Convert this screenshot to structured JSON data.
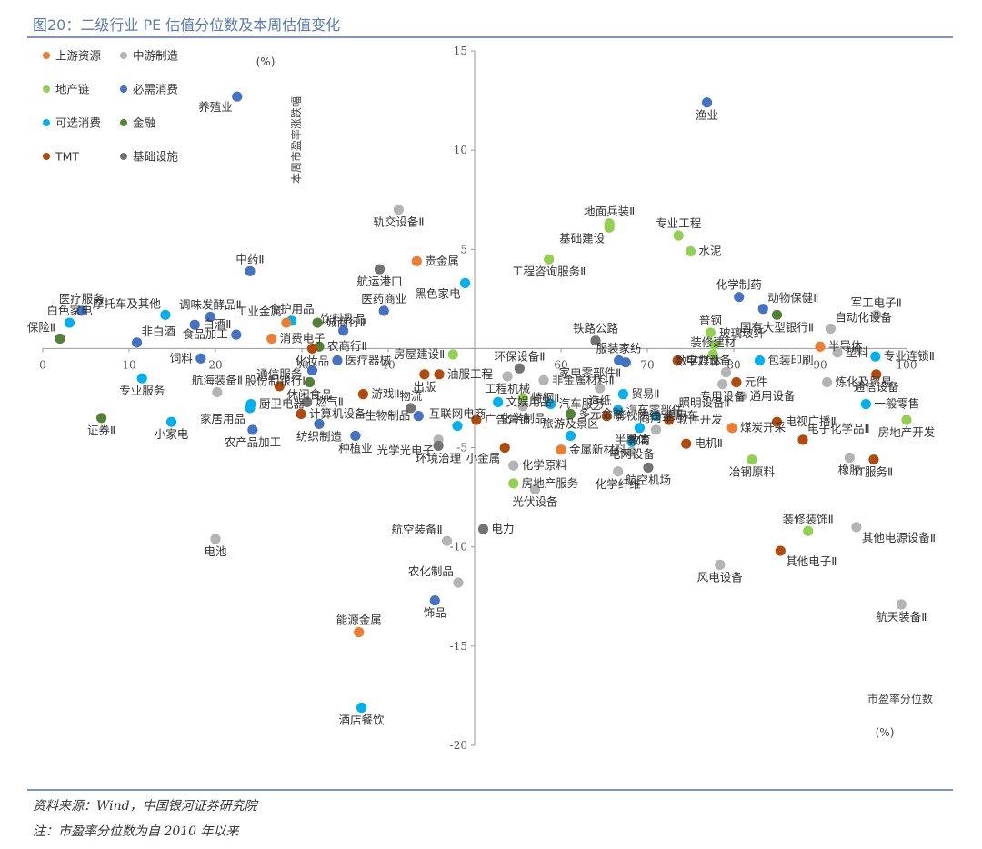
{
  "title": "图20：二级行业 PE 估值分位数及本周估值变化",
  "source": "资料来源：Wind，中国银河证券研究院",
  "note": "注：市盈率分位数为自 2010 年以来",
  "colors": {
    "上游资源": "#ED7D31",
    "中游制造": "#B4B4B4",
    "地产链": "#92D050",
    "必需消费": "#4472C4",
    "可选消费": "#00B0F0",
    "金融": "#548235",
    "TMT": "#B14A0B",
    "基础设施": "#737373",
    "rule": "#7f93c5",
    "axis": "#9a9a9a"
  },
  "chart_data": {
    "type": "scatter",
    "xlabel": "市盈率分位数",
    "xunit": "(%)",
    "ylabel": "本周市盈率涨跌幅",
    "yunit": "(%)",
    "xlim": [
      0,
      100
    ],
    "ylim": [
      -20,
      15
    ],
    "xticks": [
      0,
      10,
      20,
      30,
      40,
      50,
      60,
      70,
      80,
      90,
      100
    ],
    "yticks": [
      -20,
      -15,
      -10,
      -5,
      0,
      5,
      10,
      15
    ],
    "legend": {
      "placement": "top-left",
      "entries": [
        "上游资源",
        "中游制造",
        "地产链",
        "必需消费",
        "可选消费",
        "金融",
        "TMT",
        "基础设施"
      ]
    },
    "points": [
      {
        "name": "渔业",
        "x": 76.9,
        "y": 12.4,
        "cat": "必需消费",
        "pos": "b"
      },
      {
        "name": "养殖业",
        "x": 22.5,
        "y": 12.7,
        "cat": "必需消费",
        "pos": "bl"
      },
      {
        "name": "轨交设备Ⅱ",
        "x": 41.2,
        "y": 7.0,
        "cat": "中游制造",
        "pos": "b"
      },
      {
        "name": "地面兵装Ⅱ",
        "x": 65.6,
        "y": 6.3,
        "cat": "地产链",
        "pos": "t"
      },
      {
        "name": "基础建设",
        "x": 65.6,
        "y": 6.1,
        "cat": "地产链",
        "pos": "bl"
      },
      {
        "name": "专业工程",
        "x": 73.6,
        "y": 5.7,
        "cat": "地产链",
        "pos": "t"
      },
      {
        "name": "水泥",
        "x": 75.0,
        "y": 4.9,
        "cat": "地产链",
        "pos": "r"
      },
      {
        "name": "工程咨询服务Ⅱ",
        "x": 58.6,
        "y": 4.5,
        "cat": "地产链",
        "pos": "b"
      },
      {
        "name": "贵金属",
        "x": 43.3,
        "y": 4.4,
        "cat": "上游资源",
        "pos": "r"
      },
      {
        "name": "航运港口",
        "x": 39.0,
        "y": 4.0,
        "cat": "基础设施",
        "pos": "b"
      },
      {
        "name": "中药Ⅱ",
        "x": 24.0,
        "y": 3.9,
        "cat": "必需消费",
        "pos": "t"
      },
      {
        "name": "化学制药",
        "x": 80.6,
        "y": 2.6,
        "cat": "必需消费",
        "pos": "t"
      },
      {
        "name": "黑色家电",
        "x": 48.9,
        "y": 3.3,
        "cat": "可选消费",
        "pos": "bl"
      },
      {
        "name": "动物保健Ⅱ",
        "x": 83.4,
        "y": 2.0,
        "cat": "必需消费",
        "pos": "tr"
      },
      {
        "name": "医疗服务",
        "x": 4.5,
        "y": 1.9,
        "cat": "必需消费",
        "pos": "t"
      },
      {
        "name": "医药商业",
        "x": 39.5,
        "y": 1.9,
        "cat": "必需消费",
        "pos": "t"
      },
      {
        "name": "军工电子Ⅱ",
        "x": 96.5,
        "y": 1.7,
        "cat": "中游制造",
        "pos": "t"
      },
      {
        "name": "国有大型银行Ⅱ",
        "x": 85.0,
        "y": 1.7,
        "cat": "金融",
        "pos": "b"
      },
      {
        "name": "摩托车及其他",
        "x": 14.2,
        "y": 1.7,
        "cat": "可选消费",
        "pos": "tl"
      },
      {
        "name": "调味发酵品Ⅱ",
        "x": 19.4,
        "y": 1.6,
        "cat": "必需消费",
        "pos": "t"
      },
      {
        "name": "白色家电",
        "x": 3.1,
        "y": 1.3,
        "cat": "可选消费",
        "pos": "t"
      },
      {
        "name": "个护用品",
        "x": 28.8,
        "y": 1.4,
        "cat": "可选消费",
        "pos": "t"
      },
      {
        "name": "工业金属",
        "x": 28.2,
        "y": 1.3,
        "cat": "上游资源",
        "pos": "tl"
      },
      {
        "name": "白酒Ⅱ",
        "x": 17.6,
        "y": 1.2,
        "cat": "必需消费",
        "pos": "r"
      },
      {
        "name": "城商行Ⅱ",
        "x": 31.8,
        "y": 1.3,
        "cat": "金融",
        "pos": "r"
      },
      {
        "name": "普钢",
        "x": 77.3,
        "y": 0.8,
        "cat": "地产链",
        "pos": "t"
      },
      {
        "name": "自动化设备",
        "x": 91.2,
        "y": 1.0,
        "cat": "中游制造",
        "pos": "tr"
      },
      {
        "name": "饮料乳品",
        "x": 34.8,
        "y": 0.9,
        "cat": "必需消费",
        "pos": "t"
      },
      {
        "name": "食品加工",
        "x": 22.4,
        "y": 0.7,
        "cat": "必需消费",
        "pos": "l"
      },
      {
        "name": "消费电子",
        "x": 26.5,
        "y": 0.5,
        "cat": "上游资源",
        "pos": "r"
      },
      {
        "name": "保险Ⅱ",
        "x": 2.0,
        "y": 0.5,
        "cat": "金融",
        "pos": "tl"
      },
      {
        "name": "非白酒",
        "x": 10.9,
        "y": 0.3,
        "cat": "必需消费",
        "pos": "tr"
      },
      {
        "name": "玻璃玻纤",
        "x": 77.8,
        "y": 0.2,
        "cat": "地产链",
        "pos": "tr"
      },
      {
        "name": "铁路公路",
        "x": 64.0,
        "y": 0.4,
        "cat": "基础设施",
        "pos": "t"
      },
      {
        "name": "农商行Ⅱ",
        "x": 32.0,
        "y": 0.1,
        "cat": "金融",
        "pos": "r"
      },
      {
        "name": "化妆品",
        "x": 31.2,
        "y": 0.0,
        "cat": "TMT",
        "pos": "b"
      },
      {
        "name": "半导体",
        "x": 90.0,
        "y": 0.1,
        "cat": "上游资源",
        "pos": "r"
      },
      {
        "name": "塑料",
        "x": 92.0,
        "y": -0.2,
        "cat": "中游制造",
        "pos": "r"
      },
      {
        "name": "饲料",
        "x": 18.3,
        "y": -0.5,
        "cat": "必需消费",
        "pos": "l"
      },
      {
        "name": "房屋建设Ⅱ",
        "x": 47.5,
        "y": -0.3,
        "cat": "地产链",
        "pos": "l"
      },
      {
        "name": "医疗器械",
        "x": 34.1,
        "y": -0.6,
        "cat": "必需消费",
        "pos": "r"
      },
      {
        "name": "装修建材",
        "x": 77.6,
        "y": -0.3,
        "cat": "地产链",
        "pos": "t"
      },
      {
        "name": "专业连锁Ⅱ",
        "x": 96.4,
        "y": -0.4,
        "cat": "可选消费",
        "pos": "r"
      },
      {
        "name": "服装家纺",
        "x": 66.7,
        "y": -0.6,
        "cat": "必需消费",
        "pos": "t"
      },
      {
        "name": "环保设备Ⅱ",
        "x": 55.2,
        "y": -1.0,
        "cat": "基础设施",
        "pos": "t"
      },
      {
        "name": "包装印刷",
        "x": 83.0,
        "y": -0.6,
        "cat": "可选消费",
        "pos": "r"
      },
      {
        "name": "电力设备",
        "x": 73.5,
        "y": -0.6,
        "cat": "TMT",
        "pos": "r"
      },
      {
        "name": "家电零部件Ⅱ",
        "x": 67.5,
        "y": -0.7,
        "cat": "必需消费",
        "pos": "bl"
      },
      {
        "name": "股份制银行Ⅱ",
        "x": 31.2,
        "y": -1.1,
        "cat": "必需消费",
        "pos": "bl"
      },
      {
        "name": "航海装备Ⅱ",
        "x": 20.2,
        "y": -2.2,
        "cat": "中游制造",
        "pos": "t"
      },
      {
        "name": "油服工程",
        "x": 45.9,
        "y": -1.3,
        "cat": "TMT",
        "pos": "r"
      },
      {
        "name": "数字媒体",
        "x": 79.1,
        "y": -1.2,
        "cat": "中游制造",
        "pos": "tl"
      },
      {
        "name": "元件",
        "x": 80.3,
        "y": -1.7,
        "cat": "TMT",
        "pos": "r"
      },
      {
        "name": "炼化及贸易",
        "x": 90.8,
        "y": -1.7,
        "cat": "中游制造",
        "pos": "r"
      },
      {
        "name": "通信设备",
        "x": 96.5,
        "y": -1.3,
        "cat": "TMT",
        "pos": "b"
      },
      {
        "name": "专业服务",
        "x": 11.5,
        "y": -1.5,
        "cat": "可选消费",
        "pos": "b"
      },
      {
        "name": "通信服务",
        "x": 27.4,
        "y": -1.9,
        "cat": "TMT",
        "pos": "t"
      },
      {
        "name": "休闲食品",
        "x": 30.9,
        "y": -1.7,
        "cat": "金融",
        "pos": "b"
      },
      {
        "name": "游戏Ⅱ",
        "x": 37.1,
        "y": -2.3,
        "cat": "TMT",
        "pos": "r"
      },
      {
        "name": "出版",
        "x": 44.2,
        "y": -1.3,
        "cat": "TMT",
        "pos": "b"
      },
      {
        "name": "工程机械",
        "x": 53.8,
        "y": -1.4,
        "cat": "中游制造",
        "pos": "b"
      },
      {
        "name": "非金属材料Ⅱ",
        "x": 58.0,
        "y": -1.6,
        "cat": "中游制造",
        "pos": "r"
      },
      {
        "name": "造纸",
        "x": 64.5,
        "y": -2.0,
        "cat": "中游制造",
        "pos": "b"
      },
      {
        "name": "贸易Ⅱ",
        "x": 67.2,
        "y": -2.3,
        "cat": "可选消费",
        "pos": "r"
      },
      {
        "name": "专用设备",
        "x": 78.7,
        "y": -1.8,
        "cat": "中游制造",
        "pos": "b"
      },
      {
        "name": "通用设备",
        "x": 80.9,
        "y": -2.4,
        "cat": "中游制造",
        "pos": "r"
      },
      {
        "name": "一般零售",
        "x": 95.3,
        "y": -2.8,
        "cat": "可选消费",
        "pos": "r"
      },
      {
        "name": "物流",
        "x": 42.6,
        "y": -3.0,
        "cat": "基础设施",
        "pos": "t"
      },
      {
        "name": "文娱用品",
        "x": 52.7,
        "y": -2.7,
        "cat": "可选消费",
        "pos": "r"
      },
      {
        "name": "特钢Ⅱ",
        "x": 55.6,
        "y": -2.5,
        "cat": "地产链",
        "pos": "r"
      },
      {
        "name": "厨卫电器",
        "x": 24.1,
        "y": -2.8,
        "cat": "可选消费",
        "pos": "r"
      },
      {
        "name": "燃气Ⅱ",
        "x": 30.6,
        "y": -2.7,
        "cat": "基础设施",
        "pos": "r"
      },
      {
        "name": "家居用品",
        "x": 24.0,
        "y": -3.0,
        "cat": "可选消费",
        "pos": "bl"
      },
      {
        "name": "计算机设备",
        "x": 29.9,
        "y": -3.3,
        "cat": "TMT",
        "pos": "r"
      },
      {
        "name": "汽车服务",
        "x": 58.8,
        "y": -2.8,
        "cat": "可选消费",
        "pos": "r"
      },
      {
        "name": "化学制品",
        "x": 55.6,
        "y": -2.9,
        "cat": "中游制造",
        "pos": "b"
      },
      {
        "name": "汽车零部件",
        "x": 66.6,
        "y": -3.1,
        "cat": "可选消费",
        "pos": "r"
      },
      {
        "name": "照明设备Ⅱ",
        "x": 73.1,
        "y": -3.3,
        "cat": "中游制造",
        "pos": "tr"
      },
      {
        "name": "软件开发",
        "x": 72.5,
        "y": -3.6,
        "cat": "TMT",
        "pos": "r"
      },
      {
        "name": "生物制品",
        "x": 43.5,
        "y": -3.4,
        "cat": "必需消费",
        "pos": "l"
      },
      {
        "name": "广告营销",
        "x": 50.2,
        "y": -3.6,
        "cat": "TMT",
        "pos": "r"
      },
      {
        "name": "多元金融",
        "x": 61.1,
        "y": -3.3,
        "cat": "金融",
        "pos": "r"
      },
      {
        "name": "影视院线",
        "x": 65.3,
        "y": -3.4,
        "cat": "TMT",
        "pos": "r"
      },
      {
        "name": "乘用车",
        "x": 71.0,
        "y": -3.4,
        "cat": "可选消费",
        "pos": "r"
      },
      {
        "name": "电视广播Ⅱ",
        "x": 85.0,
        "y": -3.7,
        "cat": "TMT",
        "pos": "r"
      },
      {
        "name": "房地产开发",
        "x": 100.0,
        "y": -3.6,
        "cat": "地产链",
        "pos": "b"
      },
      {
        "name": "小家电",
        "x": 14.9,
        "y": -3.7,
        "cat": "可选消费",
        "pos": "b"
      },
      {
        "name": "证券Ⅱ",
        "x": 6.8,
        "y": -3.5,
        "cat": "金融",
        "pos": "b"
      },
      {
        "name": "农产品加工",
        "x": 24.3,
        "y": -4.1,
        "cat": "必需消费",
        "pos": "b"
      },
      {
        "name": "纺织制造",
        "x": 32.0,
        "y": -3.8,
        "cat": "必需消费",
        "pos": "b"
      },
      {
        "name": "互联网电商",
        "x": 48.0,
        "y": -3.9,
        "cat": "可选消费",
        "pos": "t"
      },
      {
        "name": "种植业",
        "x": 36.2,
        "y": -4.4,
        "cat": "必需消费",
        "pos": "b"
      },
      {
        "name": "光学光电子",
        "x": 45.8,
        "y": -4.6,
        "cat": "中游制造",
        "pos": "bl"
      },
      {
        "name": "教育",
        "x": 69.1,
        "y": -4.0,
        "cat": "可选消费",
        "pos": "b"
      },
      {
        "name": "商用车",
        "x": 71.0,
        "y": -4.1,
        "cat": "中游制造",
        "pos": "t"
      },
      {
        "name": "煤炭开采",
        "x": 79.8,
        "y": -4.0,
        "cat": "上游资源",
        "pos": "r"
      },
      {
        "name": "电子化学品Ⅱ",
        "x": 88.0,
        "y": -4.6,
        "cat": "TMT",
        "pos": "tr"
      },
      {
        "name": "小金属",
        "x": 53.5,
        "y": -5.0,
        "cat": "TMT",
        "pos": "bl"
      },
      {
        "name": "旅游及景区",
        "x": 61.1,
        "y": -4.4,
        "cat": "可选消费",
        "pos": "t"
      },
      {
        "name": "电网设备",
        "x": 68.2,
        "y": -4.7,
        "cat": "可选消费",
        "pos": "b"
      },
      {
        "name": "电机Ⅱ",
        "x": 74.5,
        "y": -4.8,
        "cat": "TMT",
        "pos": "r"
      },
      {
        "name": "金属新材料",
        "x": 60.0,
        "y": -5.1,
        "cat": "上游资源",
        "pos": "r"
      },
      {
        "name": "环境治理",
        "x": 45.8,
        "y": -4.9,
        "cat": "基础设施",
        "pos": "b"
      },
      {
        "name": "半导体",
        "x": 68.2,
        "y": -5.2,
        "cat": "中游制造",
        "pos": "t"
      },
      {
        "name": "冶钢原料",
        "x": 82.1,
        "y": -5.6,
        "cat": "地产链",
        "pos": "b"
      },
      {
        "name": "橡胶",
        "x": 93.4,
        "y": -5.5,
        "cat": "中游制造",
        "pos": "b"
      },
      {
        "name": "IT服务Ⅱ",
        "x": 96.2,
        "y": -5.6,
        "cat": "TMT",
        "pos": "b"
      },
      {
        "name": "化学原料",
        "x": 54.5,
        "y": -5.9,
        "cat": "中游制造",
        "pos": "r"
      },
      {
        "name": "化学纤维",
        "x": 66.6,
        "y": -6.2,
        "cat": "中游制造",
        "pos": "b"
      },
      {
        "name": "航空机场",
        "x": 70.1,
        "y": -6.0,
        "cat": "基础设施",
        "pos": "b"
      },
      {
        "name": "房地产服务",
        "x": 54.5,
        "y": -6.8,
        "cat": "地产链",
        "pos": "r"
      },
      {
        "name": "光伏设备",
        "x": 57.0,
        "y": -7.1,
        "cat": "中游制造",
        "pos": "b"
      },
      {
        "name": "装修装饰Ⅱ",
        "x": 88.6,
        "y": -9.2,
        "cat": "地产链",
        "pos": "t"
      },
      {
        "name": "其他电源设备Ⅱ",
        "x": 94.2,
        "y": -9.0,
        "cat": "中游制造",
        "pos": "br"
      },
      {
        "name": "电力",
        "x": 51.0,
        "y": -9.1,
        "cat": "基础设施",
        "pos": "r"
      },
      {
        "name": "航空装备Ⅱ",
        "x": 46.8,
        "y": -9.7,
        "cat": "中游制造",
        "pos": "tl"
      },
      {
        "name": "电池",
        "x": 20.0,
        "y": -9.6,
        "cat": "中游制造",
        "pos": "b"
      },
      {
        "name": "其他电子Ⅱ",
        "x": 85.4,
        "y": -10.2,
        "cat": "TMT",
        "pos": "br"
      },
      {
        "name": "风电设备",
        "x": 78.4,
        "y": -10.9,
        "cat": "中游制造",
        "pos": "b"
      },
      {
        "name": "农化制品",
        "x": 48.1,
        "y": -11.8,
        "cat": "中游制造",
        "pos": "tl"
      },
      {
        "name": "饰品",
        "x": 45.4,
        "y": -12.7,
        "cat": "必需消费",
        "pos": "b"
      },
      {
        "name": "航天装备Ⅱ",
        "x": 99.4,
        "y": -12.9,
        "cat": "中游制造",
        "pos": "b"
      },
      {
        "name": "能源金属",
        "x": 36.6,
        "y": -14.3,
        "cat": "上游资源",
        "pos": "t"
      },
      {
        "name": "酒店餐饮",
        "x": 36.9,
        "y": -18.1,
        "cat": "可选消费",
        "pos": "b"
      }
    ]
  }
}
